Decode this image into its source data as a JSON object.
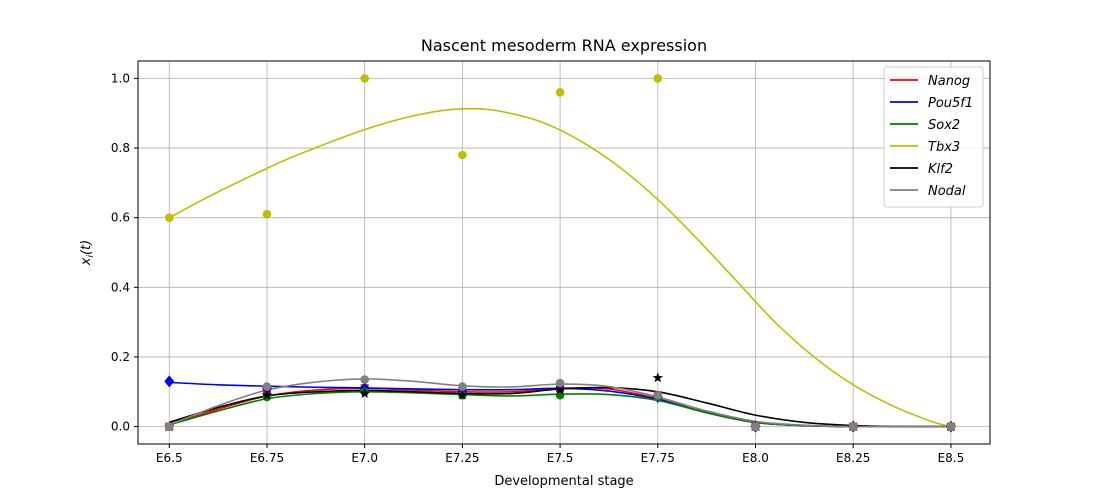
{
  "chart_data": {
    "type": "line",
    "title": "Nascent mesoderm RNA expression",
    "xlabel": "Developmental stage",
    "ylabel": "x_i(t)",
    "categories": [
      "E6.5",
      "E6.75",
      "E7.0",
      "E7.25",
      "E7.5",
      "E7.75",
      "E8.0",
      "E8.25",
      "E8.5"
    ],
    "x": [
      6.5,
      6.75,
      7.0,
      7.25,
      7.5,
      7.75,
      8.0,
      8.25,
      8.5
    ],
    "xlim": [
      6.42,
      8.6
    ],
    "ylim": [
      -0.05,
      1.05
    ],
    "yticks": [
      "0.0",
      "0.2",
      "0.4",
      "0.6",
      "0.8",
      "1.0"
    ],
    "grid": true,
    "legend_position": "top-right",
    "series": [
      {
        "name": "Nanog",
        "color": "#ff0000",
        "marker": "square",
        "points_x": [
          6.5,
          6.75,
          7.0,
          7.25,
          7.5,
          7.75,
          8.0,
          8.25,
          8.5
        ],
        "points_y": [
          0.0,
          0.1,
          0.11,
          0.1,
          0.11,
          0.09,
          0.0,
          0.0,
          0.0
        ],
        "curve_x": [
          6.5,
          6.625,
          6.75,
          6.875,
          7.0,
          7.125,
          7.25,
          7.375,
          7.5,
          7.625,
          7.75,
          7.875,
          8.0,
          8.125,
          8.25,
          8.375,
          8.5
        ],
        "curve_y": [
          0.005,
          0.05,
          0.088,
          0.105,
          0.11,
          0.105,
          0.1,
          0.1,
          0.11,
          0.108,
          0.08,
          0.04,
          0.012,
          0.003,
          0.0,
          0.0,
          0.0
        ]
      },
      {
        "name": "Pou5f1",
        "color": "#0000ff",
        "marker": "diamond",
        "points_x": [
          6.5,
          6.75,
          7.0,
          7.25,
          7.5,
          7.75,
          8.0,
          8.25,
          8.5
        ],
        "points_y": [
          0.13,
          0.11,
          0.11,
          0.1,
          0.11,
          0.085,
          0.0,
          0.0,
          0.0
        ],
        "curve_x": [
          6.5,
          6.625,
          6.75,
          6.875,
          7.0,
          7.125,
          7.25,
          7.375,
          7.5,
          7.625,
          7.75,
          7.875,
          8.0,
          8.125,
          8.25,
          8.375,
          8.5
        ],
        "curve_y": [
          0.127,
          0.12,
          0.116,
          0.113,
          0.111,
          0.108,
          0.106,
          0.106,
          0.11,
          0.102,
          0.078,
          0.04,
          0.012,
          0.003,
          0.0,
          0.0,
          0.0
        ]
      },
      {
        "name": "Sox2",
        "color": "#008000",
        "marker": "circle",
        "points_x": [
          6.5,
          6.75,
          7.0,
          7.25,
          7.5,
          7.75,
          8.0,
          8.25,
          8.5
        ],
        "points_y": [
          0.0,
          0.085,
          0.1,
          0.09,
          0.09,
          0.085,
          0.0,
          0.0,
          0.0
        ],
        "curve_x": [
          6.5,
          6.625,
          6.75,
          6.875,
          7.0,
          7.125,
          7.25,
          7.375,
          7.5,
          7.625,
          7.75,
          7.875,
          8.0,
          8.125,
          8.25,
          8.375,
          8.5
        ],
        "curve_y": [
          0.005,
          0.045,
          0.08,
          0.095,
          0.1,
          0.097,
          0.092,
          0.088,
          0.093,
          0.092,
          0.075,
          0.04,
          0.012,
          0.003,
          0.0,
          0.0,
          0.0
        ]
      },
      {
        "name": "Tbx3",
        "color": "#bfbf00",
        "marker": "circle",
        "points_x": [
          6.5,
          6.75,
          7.0,
          7.25,
          7.5,
          7.75,
          8.0,
          8.25,
          8.5
        ],
        "points_y": [
          0.6,
          0.61,
          1.0,
          0.78,
          0.96,
          1.0,
          0.0,
          0.0,
          0.0
        ],
        "curve_x": [
          6.5,
          6.6,
          6.7,
          6.8,
          6.9,
          7.0,
          7.1,
          7.2,
          7.28,
          7.35,
          7.45,
          7.55,
          7.65,
          7.75,
          7.85,
          7.95,
          8.05,
          8.15,
          8.25,
          8.35,
          8.45,
          8.5
        ],
        "curve_y": [
          0.6,
          0.66,
          0.715,
          0.767,
          0.812,
          0.853,
          0.886,
          0.908,
          0.913,
          0.905,
          0.876,
          0.822,
          0.747,
          0.652,
          0.54,
          0.42,
          0.3,
          0.2,
          0.12,
          0.06,
          0.015,
          0.0
        ]
      },
      {
        "name": "Klf2",
        "color": "#000000",
        "marker": "star",
        "points_x": [
          6.5,
          6.75,
          7.0,
          7.25,
          7.5,
          7.75,
          8.0,
          8.25,
          8.5
        ],
        "points_y": [
          0.0,
          0.09,
          0.095,
          0.09,
          0.105,
          0.14,
          0.0,
          0.0,
          0.0
        ],
        "curve_x": [
          6.5,
          6.625,
          6.75,
          6.875,
          7.0,
          7.125,
          7.25,
          7.375,
          7.5,
          7.625,
          7.75,
          7.875,
          8.0,
          8.125,
          8.25,
          8.375,
          8.5
        ],
        "curve_y": [
          0.012,
          0.055,
          0.088,
          0.1,
          0.104,
          0.1,
          0.095,
          0.095,
          0.108,
          0.112,
          0.1,
          0.068,
          0.033,
          0.012,
          0.003,
          0.0,
          0.0
        ]
      },
      {
        "name": "Nodal",
        "color": "#808080",
        "marker": "circle",
        "points_x": [
          6.5,
          6.75,
          7.0,
          7.25,
          7.5,
          7.75,
          8.0,
          8.25,
          8.5
        ],
        "points_y": [
          0.0,
          0.115,
          0.135,
          0.115,
          0.125,
          0.09,
          0.0,
          0.0,
          0.0
        ],
        "curve_x": [
          6.5,
          6.625,
          6.75,
          6.875,
          7.0,
          7.125,
          7.25,
          7.375,
          7.5,
          7.625,
          7.75,
          7.875,
          8.0,
          8.125,
          8.25,
          8.375,
          8.5
        ],
        "curve_y": [
          0.005,
          0.06,
          0.105,
          0.128,
          0.137,
          0.13,
          0.117,
          0.114,
          0.122,
          0.115,
          0.085,
          0.045,
          0.015,
          0.004,
          0.0,
          0.0,
          0.0
        ]
      }
    ]
  }
}
